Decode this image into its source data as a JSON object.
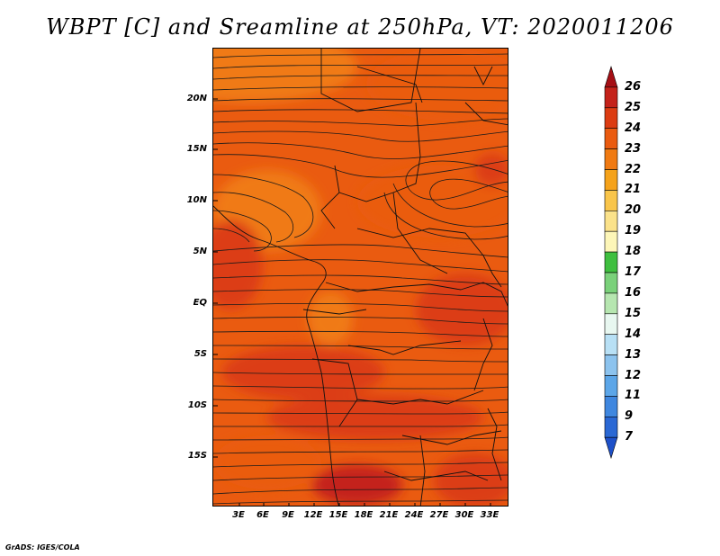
{
  "title": "WBPT [C] and Sreamline at 250hPa, VT: 2020011206",
  "credit": "GrADS: IGES/COLA",
  "map": {
    "lat_ticks": [
      "20N",
      "15N",
      "10N",
      "5N",
      "EQ",
      "5S",
      "10S",
      "15S"
    ],
    "lon_ticks": [
      "3E",
      "6E",
      "9E",
      "12E",
      "15E",
      "18E",
      "21E",
      "24E",
      "27E",
      "30E",
      "33E"
    ],
    "field_colors": {
      "c21": "#f5a21a",
      "c22": "#f07a12",
      "c23": "#ea5b10",
      "c24": "#dc3c12",
      "c25": "#c4221a"
    }
  },
  "colorbar": {
    "labels": [
      "26",
      "25",
      "24",
      "23",
      "22",
      "21",
      "20",
      "19",
      "18",
      "17",
      "16",
      "15",
      "14",
      "13",
      "12",
      "11",
      "9",
      "7"
    ],
    "colors": [
      "#a50f15",
      "#c4221a",
      "#dc3c12",
      "#ea5b10",
      "#f07a12",
      "#f5a21a",
      "#f9c54a",
      "#fbe28a",
      "#fdf6b8",
      "#3fbf3f",
      "#7ad17a",
      "#b6e6b0",
      "#e8f7f0",
      "#b8e0f5",
      "#8cc3ee",
      "#5ca6e8",
      "#3f87df",
      "#2a68d4",
      "#1d50c9"
    ]
  }
}
